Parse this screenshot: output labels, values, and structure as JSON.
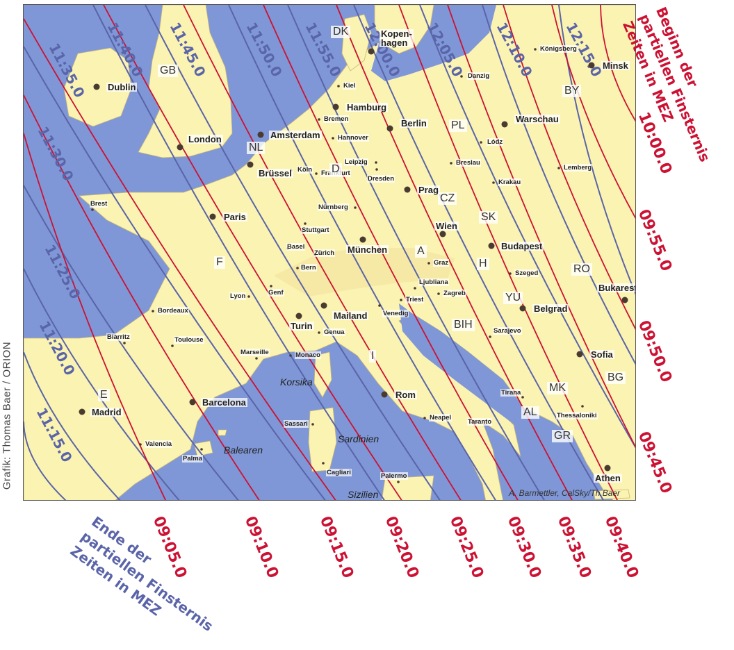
{
  "map": {
    "credit": "A. Barmettler, CalSky/Th.Baer",
    "regions": [
      "Korsika",
      "Sardinien",
      "Balearen",
      "Sizilien"
    ],
    "countries": [
      "DK",
      "GB",
      "NL",
      "D",
      "PL",
      "BY",
      "CZ",
      "SK",
      "F",
      "A",
      "H",
      "RO",
      "YU",
      "BIH",
      "BG",
      "MK",
      "AL",
      "GR",
      "I",
      "E"
    ],
    "capitals": [
      "Kopen-\nhagen",
      "Dublin",
      "Minsk",
      "Hamburg",
      "Berlin",
      "Warschau",
      "Amsterdam",
      "London",
      "Brüssel",
      "Prag",
      "Paris",
      "Wien",
      "München",
      "Budapest",
      "Bukarest",
      "Belgrad",
      "Turin",
      "Mailand",
      "Sofia",
      "Rom",
      "Barcelona",
      "Madrid",
      "Athen"
    ],
    "cities": [
      "Königsberg",
      "Danzig",
      "Kiel",
      "Bremen",
      "Hannover",
      "Lódz",
      "Köln",
      "Leipzig",
      "Dresden",
      "Breslau",
      "Lemberg",
      "Frankfurt",
      "Krakau",
      "Brest",
      "Nürnberg",
      "Stuttgart",
      "Basel",
      "Zürich",
      "Bern",
      "Graz",
      "Szeged",
      "Genf",
      "Lyon",
      "Ljubliana",
      "Triest",
      "Zagreb",
      "Venedig",
      "Bordeaux",
      "Sarajevo",
      "Biarritz",
      "Toulouse",
      "Genua",
      "Marseille",
      "Monaco",
      "Tirana",
      "Neapel",
      "Taranto",
      "Thessaloniki",
      "Sassari",
      "Valencia",
      "Palma",
      "Cagliari",
      "Palermo"
    ]
  },
  "end_times": [
    "11:15.0",
    "11:20.0",
    "11:25.0",
    "11:30.0",
    "11:35.0",
    "11:40.0",
    "11:45.0",
    "11:50.0",
    "11:55.0",
    "12:00.0",
    "12:05.0",
    "12:10.0",
    "12:15.0"
  ],
  "begin_times_bottom": [
    "09:05.0",
    "09:10.0",
    "09:15.0",
    "09:20.0",
    "09:25.0",
    "09:30.0",
    "09:35.0",
    "09:40.0"
  ],
  "begin_times_right": [
    "09:45.0",
    "09:50.0",
    "09:55.0",
    "10:00.0"
  ],
  "annotations": {
    "begin_label": "Beginn der\npartiellen Finsternis\nZeiten in MEZ",
    "end_label": "Ende der\npartiellen Finsternis\nZeiten in MEZ"
  },
  "graphic_credit": "Grafik: Thomas Baer / ORION",
  "colors": {
    "sea": "#7f97d6",
    "land": "#fbf3b2",
    "begin_line": "#cc1133",
    "end_line": "#5a64a8",
    "city_dot": "#4a3b30"
  }
}
